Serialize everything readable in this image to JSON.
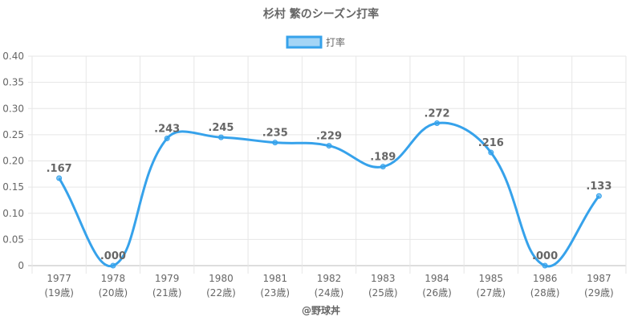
{
  "chart_data": {
    "type": "line",
    "title": "杉村 繁のシーズン打率",
    "legend": {
      "label": "打率",
      "placement": "top"
    },
    "categories": [
      "1977",
      "1978",
      "1979",
      "1980",
      "1981",
      "1982",
      "1983",
      "1984",
      "1985",
      "1986",
      "1987"
    ],
    "category_sublabels": [
      "(19歳)",
      "(20歳)",
      "(21歳)",
      "(22歳)",
      "(23歳)",
      "(24歳)",
      "(25歳)",
      "(26歳)",
      "(27歳)",
      "(28歳)",
      "(29歳)"
    ],
    "values": [
      0.167,
      0,
      0.243,
      0.245,
      0.235,
      0.229,
      0.189,
      0.272,
      0.216,
      0,
      0.133
    ],
    "data_labels": [
      ".167",
      ".000",
      ".243",
      ".245",
      ".235",
      ".229",
      ".189",
      ".272",
      ".216",
      ".000",
      ".133"
    ],
    "yticks": [
      "0",
      "0.05",
      "0.10",
      "0.15",
      "0.20",
      "0.25",
      "0.30",
      "0.35",
      "0.40"
    ],
    "ylim": [
      0,
      0.4
    ],
    "grid": true,
    "color": "#36a2eb",
    "footer": "@野球丼"
  }
}
